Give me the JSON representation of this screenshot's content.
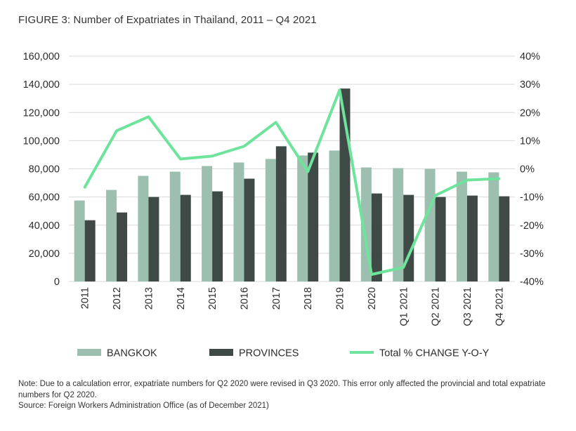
{
  "title": "FIGURE 3: Number of Expatriates in Thailand, 2011 – Q4 2021",
  "chart_data": {
    "type": "bar",
    "categories": [
      "2011",
      "2012",
      "2013",
      "2014",
      "2015",
      "2016",
      "2017",
      "2018",
      "2019",
      "2020",
      "Q1 2021",
      "Q2 2021",
      "Q3 2021",
      "Q4 2021"
    ],
    "series": [
      {
        "name": "BANGKOK",
        "kind": "bar",
        "axis": "left",
        "color": "#9cbfb0",
        "values": [
          57500,
          65000,
          75000,
          78000,
          82000,
          84500,
          87000,
          89500,
          93000,
          81000,
          80500,
          80000,
          78000,
          77500
        ]
      },
      {
        "name": "PROVINCES",
        "kind": "bar",
        "axis": "left",
        "color": "#3f4a47",
        "values": [
          43500,
          49000,
          60000,
          61500,
          64000,
          73000,
          96000,
          91500,
          137000,
          62500,
          61500,
          60000,
          61000,
          60500
        ]
      },
      {
        "name": "Total % CHANGE Y-O-Y",
        "kind": "line",
        "axis": "right",
        "color": "#6ee39b",
        "values": [
          -6.5,
          13.5,
          18.5,
          3.5,
          4.5,
          8,
          16.5,
          -1,
          28,
          -37.5,
          -35,
          -9.5,
          -4,
          -3.5
        ]
      }
    ],
    "y_left": {
      "min": 0,
      "max": 160000,
      "step": 20000,
      "ticks": [
        "0",
        "20,000",
        "40,000",
        "60,000",
        "80,000",
        "100,000",
        "120,000",
        "140,000",
        "160,000"
      ]
    },
    "y_right": {
      "min": -40,
      "max": 40,
      "step": 10,
      "ticks": [
        "-40%",
        "-30%",
        "-20%",
        "-10%",
        "0%",
        "10%",
        "20%",
        "30%",
        "40%"
      ]
    },
    "grid": true,
    "legend_position": "bottom"
  },
  "legend": [
    {
      "label": "BANGKOK",
      "color": "#9cbfb0",
      "kind": "bar"
    },
    {
      "label": "PROVINCES",
      "color": "#3f4a47",
      "kind": "bar"
    },
    {
      "label": "Total % CHANGE Y-O-Y",
      "color": "#6ee39b",
      "kind": "line"
    }
  ],
  "notes": {
    "note": "Note: Due to a calculation error, expatriate numbers for Q2 2020 were revised in Q3 2020. This error only affected the provincial and total expatriate numbers for Q2 2020.",
    "source": "Source: Foreign Workers Administration Office (as of December 2021)"
  }
}
